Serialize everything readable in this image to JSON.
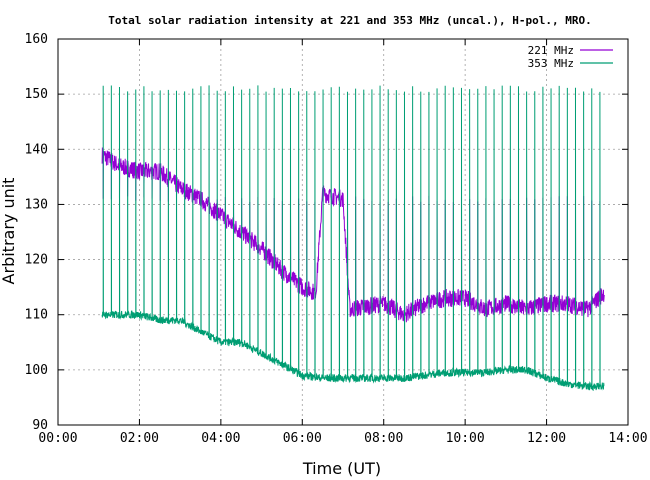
{
  "chart_data": {
    "type": "line",
    "title": "Total solar radiation intensity at 221 and 353 MHz (uncal.), H-pol., MRO.",
    "xlabel": "Time (UT)",
    "ylabel": "Arbitrary unit",
    "xlim": [
      "00:00",
      "14:00"
    ],
    "ylim": [
      90,
      160
    ],
    "x_ticks": [
      "00:00",
      "02:00",
      "04:00",
      "06:00",
      "08:00",
      "10:00",
      "12:00",
      "14:00"
    ],
    "y_ticks": [
      90,
      100,
      110,
      120,
      130,
      140,
      150,
      160
    ],
    "grid": true,
    "legend_position": "top-right",
    "spike_interval_minutes": 12,
    "series": [
      {
        "name": "221 MHz",
        "color": "#9400d3",
        "baseline": [
          {
            "x": "01:05",
            "y": 139
          },
          {
            "x": "01:30",
            "y": 137
          },
          {
            "x": "02:00",
            "y": 136
          },
          {
            "x": "02:30",
            "y": 136
          },
          {
            "x": "03:00",
            "y": 133
          },
          {
            "x": "03:30",
            "y": 131
          },
          {
            "x": "04:00",
            "y": 128
          },
          {
            "x": "04:30",
            "y": 125
          },
          {
            "x": "05:00",
            "y": 122
          },
          {
            "x": "05:30",
            "y": 118
          },
          {
            "x": "06:00",
            "y": 115
          },
          {
            "x": "06:20",
            "y": 114
          },
          {
            "x": "06:30",
            "y": 132
          },
          {
            "x": "07:00",
            "y": 131
          },
          {
            "x": "07:10",
            "y": 111
          },
          {
            "x": "08:00",
            "y": 112
          },
          {
            "x": "08:30",
            "y": 110
          },
          {
            "x": "09:00",
            "y": 112
          },
          {
            "x": "09:30",
            "y": 113
          },
          {
            "x": "10:00",
            "y": 113
          },
          {
            "x": "10:30",
            "y": 111
          },
          {
            "x": "11:00",
            "y": 112
          },
          {
            "x": "11:30",
            "y": 111
          },
          {
            "x": "12:00",
            "y": 112
          },
          {
            "x": "12:30",
            "y": 112
          },
          {
            "x": "13:00",
            "y": 111
          },
          {
            "x": "13:25",
            "y": 114
          }
        ],
        "spike_top": 131
      },
      {
        "name": "353 MHz",
        "color": "#009e73",
        "baseline": [
          {
            "x": "01:05",
            "y": 110
          },
          {
            "x": "01:30",
            "y": 110
          },
          {
            "x": "02:00",
            "y": 110
          },
          {
            "x": "02:30",
            "y": 109
          },
          {
            "x": "03:00",
            "y": 109
          },
          {
            "x": "03:30",
            "y": 107
          },
          {
            "x": "04:00",
            "y": 105
          },
          {
            "x": "04:30",
            "y": 105
          },
          {
            "x": "05:00",
            "y": 103
          },
          {
            "x": "05:30",
            "y": 101
          },
          {
            "x": "06:00",
            "y": 99
          },
          {
            "x": "06:30",
            "y": 98.5
          },
          {
            "x": "07:00",
            "y": 98.5
          },
          {
            "x": "07:30",
            "y": 98.5
          },
          {
            "x": "08:00",
            "y": 98.5
          },
          {
            "x": "08:30",
            "y": 98.5
          },
          {
            "x": "09:00",
            "y": 99
          },
          {
            "x": "09:30",
            "y": 99.5
          },
          {
            "x": "10:00",
            "y": 99.5
          },
          {
            "x": "10:30",
            "y": 99.5
          },
          {
            "x": "11:00",
            "y": 100
          },
          {
            "x": "11:30",
            "y": 100
          },
          {
            "x": "12:00",
            "y": 98.5
          },
          {
            "x": "12:30",
            "y": 97.5
          },
          {
            "x": "13:00",
            "y": 97
          },
          {
            "x": "13:25",
            "y": 97
          }
        ],
        "spike_top": 151
      }
    ]
  }
}
